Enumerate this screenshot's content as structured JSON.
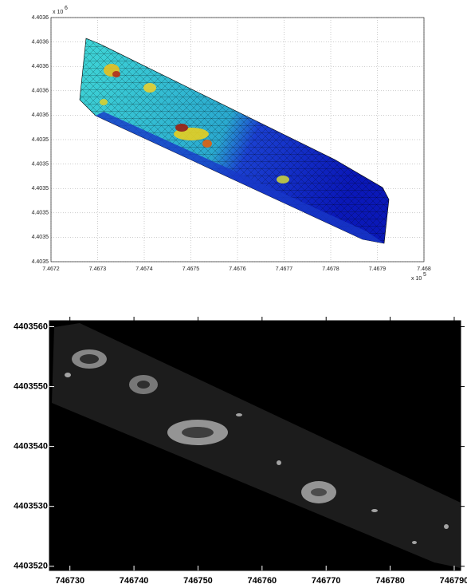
{
  "chart_data": [
    {
      "type": "surface",
      "xlim": [
        7.4672,
        7.468
      ],
      "xticks": [
        7.4672,
        7.4673,
        7.4674,
        7.4675,
        7.4676,
        7.4677,
        7.4678,
        7.4679,
        7.468
      ],
      "ylim": [
        4.40352,
        4.40357
      ],
      "yticks": [
        {
          "value": 4.40352,
          "label": "4.4035"
        },
        {
          "value": 4.403525,
          "label": "4.4035"
        },
        {
          "value": 4.40353,
          "label": "4.4035"
        },
        {
          "value": 4.403535,
          "label": "4.4035"
        },
        {
          "value": 4.40354,
          "label": "4.4035"
        },
        {
          "value": 4.403545,
          "label": "4.4035"
        },
        {
          "value": 4.40355,
          "label": "4.4036"
        },
        {
          "value": 4.403555,
          "label": "4.4036"
        },
        {
          "value": 4.40356,
          "label": "4.4036"
        },
        {
          "value": 4.403565,
          "label": "4.4036"
        },
        {
          "value": 4.40357,
          "label": "4.4036"
        }
      ],
      "x_scale_label": "x 10",
      "x_scale_exponent": "5",
      "y_scale_label": "x 10",
      "y_scale_exponent": "6",
      "grid": true
    },
    {
      "type": "image",
      "xlim": [
        746726.8,
        746791
      ],
      "xticks": [
        746730,
        746740,
        746750,
        746760,
        746770,
        746780,
        746790
      ],
      "ylim": [
        4403519.3,
        4403561
      ],
      "yticks": [
        4403520,
        4403530,
        4403540,
        4403550,
        4403560
      ]
    }
  ]
}
